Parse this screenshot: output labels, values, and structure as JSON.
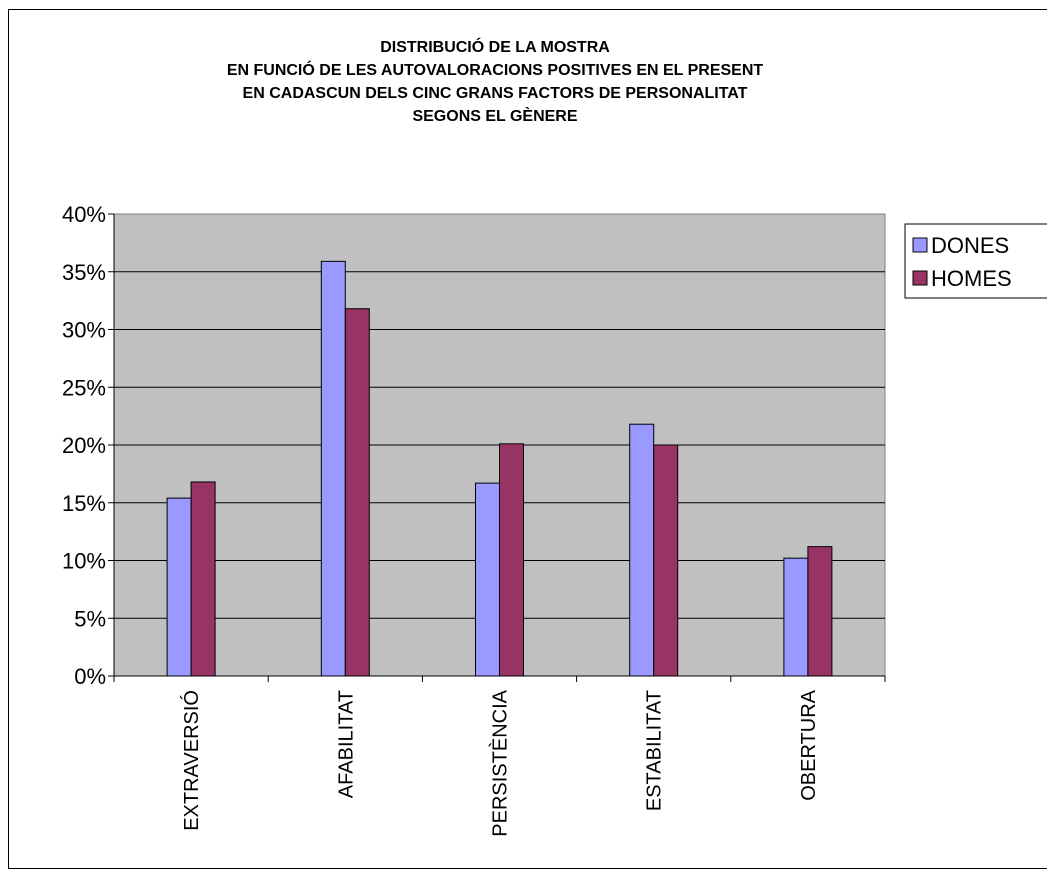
{
  "chart_data": {
    "type": "bar",
    "title_lines": [
      "DISTRIBUCIÓ DE LA MOSTRA",
      "EN FUNCIÓ DE LES AUTOVALORACIONS POSITIVES EN EL PRESENT",
      "EN CADASCUN DELS CINC GRANS FACTORS DE PERSONALITAT",
      "SEGONS EL GÈNERE"
    ],
    "categories": [
      "EXTRAVERSIÓ",
      "AFABILITAT",
      "PERSISTÈNCIA",
      "ESTABILITAT",
      "OBERTURA"
    ],
    "series": [
      {
        "name": "DONES",
        "color": "#9999FF",
        "values": [
          15.4,
          35.9,
          16.7,
          21.8,
          10.2
        ]
      },
      {
        "name": "HOMES",
        "color": "#993366",
        "values": [
          16.8,
          31.8,
          20.1,
          20.0,
          11.2
        ]
      }
    ],
    "y_ticks": [
      "0%",
      "5%",
      "10%",
      "15%",
      "20%",
      "25%",
      "30%",
      "35%",
      "40%"
    ],
    "ylim": [
      0,
      40
    ],
    "y_unit": "%",
    "grid": true,
    "plot_background": "#C0C0C0",
    "legend_position": "right"
  }
}
